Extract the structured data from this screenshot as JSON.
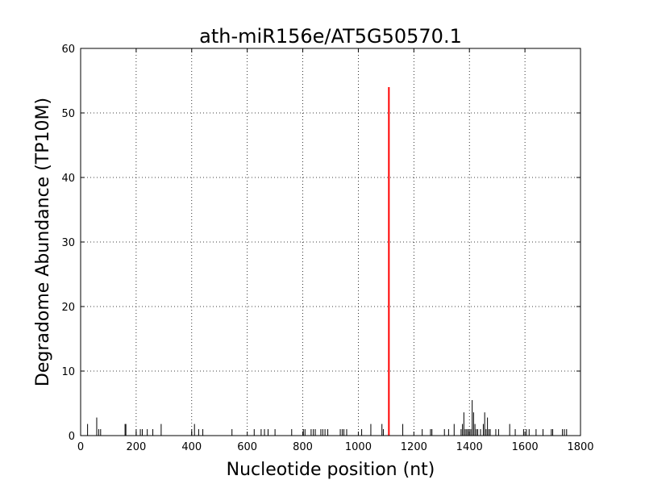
{
  "chart_data": {
    "type": "bar",
    "title": "ath-miR156e/AT5G50570.1",
    "xlabel": "Nucleotide position (nt)",
    "ylabel": "Degradome Abundance (TP10M)",
    "xlim": [
      0,
      1800
    ],
    "ylim": [
      0,
      60
    ],
    "xticks": [
      "0",
      "200",
      "400",
      "600",
      "800",
      "1000",
      "1200",
      "1400",
      "1600",
      "1800"
    ],
    "yticks": [
      "0",
      "10",
      "20",
      "30",
      "40",
      "50",
      "60"
    ],
    "grid": true,
    "colors": {
      "background": "#000000",
      "highlight": "#ff0000"
    },
    "series": [
      {
        "color": "#000000",
        "x": [
          25,
          58,
          65,
          72,
          160,
          163,
          200,
          215,
          222,
          240,
          260,
          290,
          400,
          410,
          425,
          440,
          545,
          625,
          650,
          662,
          675,
          700,
          760,
          802,
          808,
          830,
          838,
          845,
          865,
          872,
          880,
          890,
          935,
          942,
          948,
          958,
          1012,
          1045,
          1085,
          1090,
          1160,
          1230,
          1260,
          1265,
          1310,
          1325,
          1345,
          1370,
          1375,
          1380,
          1385,
          1390,
          1395,
          1400,
          1405,
          1410,
          1415,
          1420,
          1425,
          1430,
          1440,
          1450,
          1455,
          1460,
          1465,
          1470,
          1475,
          1495,
          1505,
          1545,
          1565,
          1595,
          1605,
          1615,
          1640,
          1665,
          1695,
          1700,
          1735,
          1742,
          1750
        ],
        "values": [
          1.8,
          2.8,
          1.0,
          1.0,
          1.8,
          1.8,
          1.0,
          1.0,
          1.0,
          1.0,
          1.0,
          1.8,
          1.0,
          1.8,
          1.0,
          1.0,
          1.0,
          1.0,
          1.0,
          1.0,
          1.0,
          1.0,
          1.0,
          1.0,
          1.0,
          1.0,
          1.0,
          1.0,
          1.0,
          1.0,
          1.0,
          1.0,
          1.0,
          1.0,
          1.0,
          1.0,
          1.0,
          1.8,
          1.8,
          1.0,
          1.8,
          1.0,
          1.0,
          1.0,
          1.0,
          1.0,
          1.8,
          1.0,
          1.8,
          3.6,
          1.0,
          1.0,
          1.0,
          1.0,
          1.0,
          5.5,
          3.6,
          1.8,
          1.0,
          1.0,
          1.0,
          1.8,
          3.6,
          1.0,
          2.8,
          1.0,
          1.0,
          1.0,
          1.0,
          1.8,
          1.0,
          1.0,
          1.0,
          1.0,
          1.0,
          1.0,
          1.0,
          1.0,
          1.0,
          1.0,
          1.0
        ]
      },
      {
        "color": "#ff0000",
        "x": [
          1110
        ],
        "values": [
          54.0
        ]
      }
    ]
  }
}
